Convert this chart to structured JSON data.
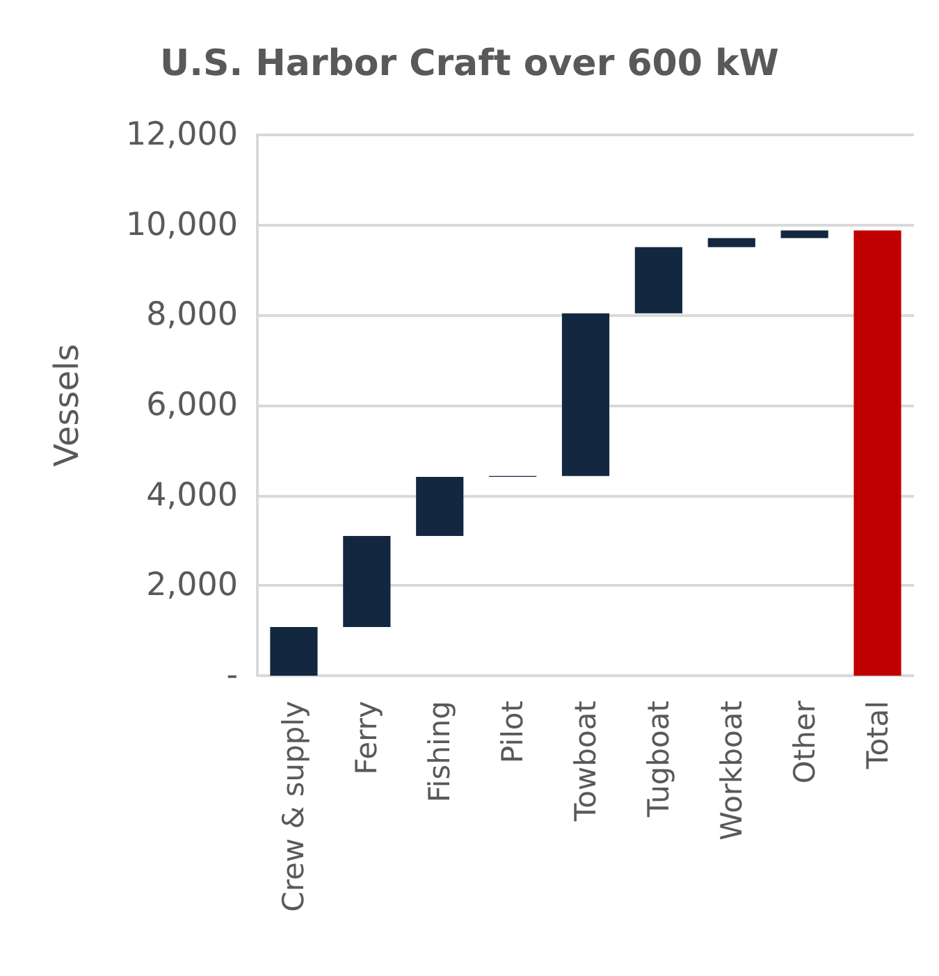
{
  "chart_data": {
    "type": "bar",
    "title": "U.S. Harbor Craft over 600 kW",
    "ylabel": "Vessels",
    "categories": [
      "Crew & supply",
      "Ferry",
      "Fishing",
      "Pilot",
      "Towboat",
      "Tugboat",
      "Workboat",
      "Other",
      "Total"
    ],
    "values": [
      1080,
      2020,
      1310,
      20,
      3610,
      1470,
      200,
      170,
      9880
    ],
    "base": [
      0,
      1080,
      3100,
      4410,
      4430,
      8040,
      9510,
      9710,
      0
    ],
    "colors": [
      "#132741",
      "#132741",
      "#132741",
      "#132741",
      "#132741",
      "#132741",
      "#132741",
      "#132741",
      "#c00000"
    ],
    "ylim": [
      0,
      12000
    ],
    "yticks": [
      {
        "value": 0,
        "label": "-"
      },
      {
        "value": 2000,
        "label": "2,000"
      },
      {
        "value": 4000,
        "label": "4,000"
      },
      {
        "value": 6000,
        "label": "6,000"
      },
      {
        "value": 8000,
        "label": "8,000"
      },
      {
        "value": 10000,
        "label": "10,000"
      },
      {
        "value": 12000,
        "label": "12,000"
      }
    ],
    "grid": "y"
  }
}
